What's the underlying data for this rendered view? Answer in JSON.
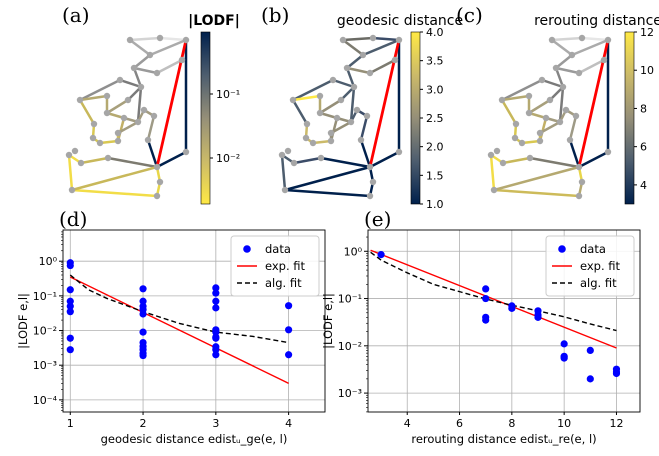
{
  "top_panels": {
    "a": {
      "label": "(a)",
      "colorbar_title": "|LODF|",
      "tick_labels": [
        "10⁻¹",
        "10⁻²"
      ]
    },
    "b": {
      "label": "(b)",
      "colorbar_title": "geodesic distance",
      "tick_labels": [
        "4.0",
        "3.5",
        "3.0",
        "2.5",
        "2.0",
        "1.5",
        "1.0"
      ]
    },
    "c": {
      "label": "(c)",
      "colorbar_title": "rerouting distance",
      "tick_labels": [
        "12",
        "10",
        "8",
        "6",
        "4"
      ]
    }
  },
  "colors": {
    "data_points": "#0000ff",
    "exp_fit": "#ff0000",
    "alg_fit": "#000000",
    "cividis_low": "#00204c",
    "cividis_high": "#ffe945",
    "failed_line": "#ff0000",
    "node": "#a6a6a6"
  },
  "chart_data": [
    {
      "panel_label": "(d)",
      "type": "scatter",
      "xlabel": "geodesic distance edistᵤ_ge(e, l)",
      "ylabel": "|LODF e,l|",
      "xticks": [
        "1",
        "2",
        "3",
        "4"
      ],
      "yticks": [
        "10⁰",
        "10⁻¹",
        "10⁻²",
        "10⁻³",
        "10⁻⁴"
      ],
      "xlim": [
        0.9,
        4.5
      ],
      "ylim_log10": [
        -4.35,
        0.9
      ],
      "grid": true,
      "legend_position": "top-right",
      "legend": [
        "data",
        "exp. fit",
        "alg. fit"
      ],
      "series": [
        {
          "name": "data",
          "x": [
            1,
            1,
            1,
            1,
            1,
            1,
            1,
            1,
            2,
            2,
            2,
            2,
            2,
            2,
            2,
            2,
            2,
            2,
            2,
            3,
            3,
            3,
            3,
            3,
            3,
            3,
            3,
            3,
            3,
            3,
            4,
            4,
            4
          ],
          "y": [
            0.9,
            0.75,
            0.15,
            0.07,
            0.05,
            0.035,
            0.006,
            0.0028,
            0.16,
            0.07,
            0.05,
            0.04,
            0.03,
            0.009,
            0.0045,
            0.0035,
            0.0028,
            0.0022,
            0.0019,
            0.17,
            0.12,
            0.07,
            0.045,
            0.0105,
            0.009,
            0.0065,
            0.006,
            0.0034,
            0.0028,
            0.002,
            0.052,
            0.0105,
            0.002
          ]
        },
        {
          "name": "exp. fit",
          "x": [
            1,
            4
          ],
          "y": [
            0.35,
            0.0003
          ]
        },
        {
          "name": "alg. fit",
          "x": [
            1,
            1.25,
            1.5,
            2,
            2.5,
            3,
            3.5,
            4
          ],
          "y": [
            0.4,
            0.15,
            0.085,
            0.035,
            0.016,
            0.009,
            0.0068,
            0.0045
          ]
        }
      ]
    },
    {
      "panel_label": "(e)",
      "type": "scatter",
      "xlabel": "rerouting distance edistᵤ_re(e, l)",
      "ylabel": "|LODF e,l|",
      "xticks": [
        "4",
        "6",
        "8",
        "10",
        "12"
      ],
      "yticks": [
        "10⁰",
        "10⁻¹",
        "10⁻²",
        "10⁻³"
      ],
      "xlim": [
        2.5,
        12.9
      ],
      "ylim_log10": [
        -3.4,
        0.45
      ],
      "grid": true,
      "legend_position": "top-right",
      "legend": [
        "data",
        "exp. fit",
        "alg. fit"
      ],
      "series": [
        {
          "name": "data",
          "x": [
            3,
            7,
            7,
            7,
            7,
            8,
            8,
            9,
            9,
            9,
            10,
            10,
            10,
            10,
            11,
            11,
            12,
            12,
            12
          ],
          "y": [
            0.85,
            0.16,
            0.1,
            0.04,
            0.035,
            0.07,
            0.062,
            0.055,
            0.045,
            0.04,
            0.011,
            0.006,
            0.0058,
            0.0055,
            0.008,
            0.002,
            0.0032,
            0.0028,
            0.0026
          ]
        },
        {
          "name": "exp. fit",
          "x": [
            2.6,
            12
          ],
          "y": [
            1.05,
            0.009
          ]
        },
        {
          "name": "alg. fit",
          "x": [
            2.6,
            3,
            4,
            5,
            6,
            7,
            8,
            9,
            10,
            11,
            12
          ],
          "y": [
            0.95,
            0.65,
            0.35,
            0.2,
            0.14,
            0.098,
            0.072,
            0.055,
            0.041,
            0.029,
            0.021
          ]
        }
      ]
    }
  ]
}
